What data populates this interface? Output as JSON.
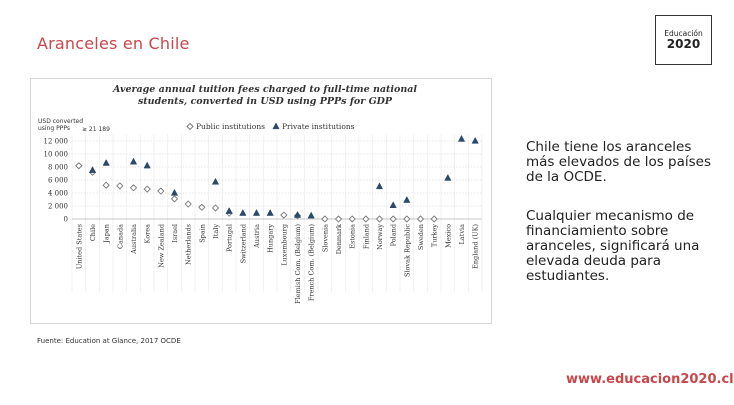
{
  "slide": {
    "title": "Aranceles en Chile",
    "body": [
      "Chile tiene los aranceles más elevados de los países de la OCDE.",
      "Cualquier mecanismo de financiamiento sobre aranceles, significará una elevada deuda para estudiantes."
    ],
    "source": "Fuente: Education at Glance, 2017 OCDE",
    "logo": [
      "Educación",
      "2020"
    ],
    "url": "www.educacion2020.cl"
  },
  "chart_data": {
    "type": "scatter",
    "title": "Average annual tuition fees charged to full-time national students, converted in USD using PPPs for GDP",
    "y_label": "USD converted using PPPs",
    "annotation": "≥ 21 189",
    "categories": [
      "United States",
      "Chile",
      "Japan",
      "Canada",
      "Australia",
      "Korea",
      "New Zealand",
      "Israel",
      "Netherlands",
      "Spain",
      "Italy",
      "Portugal",
      "Switzerland",
      "Austria",
      "Hungary",
      "Luxembourg",
      "Flemish Com. (Belgium)",
      "French Com. (Belgium)",
      "Slovenia",
      "Denmark",
      "Estonia",
      "Finland",
      "Norway",
      "Poland",
      "Slovak Republic",
      "Sweden",
      "Turkey",
      "Mexico",
      "Latvia",
      "England (UK)"
    ],
    "series": [
      {
        "name": "Public institutions",
        "color": "#ffffff",
        "stroke": "#777777",
        "marker": "diamond",
        "values": [
          8200,
          7200,
          5200,
          5100,
          4800,
          4600,
          4300,
          3100,
          2300,
          1800,
          1700,
          900,
          null,
          null,
          null,
          600,
          500,
          null,
          0,
          0,
          0,
          0,
          0,
          0,
          0,
          0,
          0,
          null,
          null,
          null
        ]
      },
      {
        "name": "Private institutions",
        "color": "#2b4a6b",
        "stroke": "#2b4a6b",
        "marker": "triangle",
        "values": [
          null,
          7500,
          8600,
          null,
          8800,
          8200,
          null,
          4000,
          null,
          null,
          5700,
          1200,
          900,
          900,
          900,
          null,
          600,
          500,
          null,
          null,
          null,
          null,
          5000,
          2100,
          2900,
          null,
          null,
          6300,
          12300,
          12000
        ]
      }
    ],
    "ylim": [
      0,
      13000
    ],
    "yticks": [
      0,
      {
        "value": 2000,
        "label": "2 000"
      },
      {
        "value": 4000,
        "label": "4 000"
      },
      {
        "value": 6000,
        "label": "6 000"
      },
      {
        "value": 8000,
        "label": "8 000"
      },
      {
        "value": 10000,
        "label": "10 000"
      },
      {
        "value": 12000,
        "label": "12 000"
      }
    ],
    "grid": true
  }
}
